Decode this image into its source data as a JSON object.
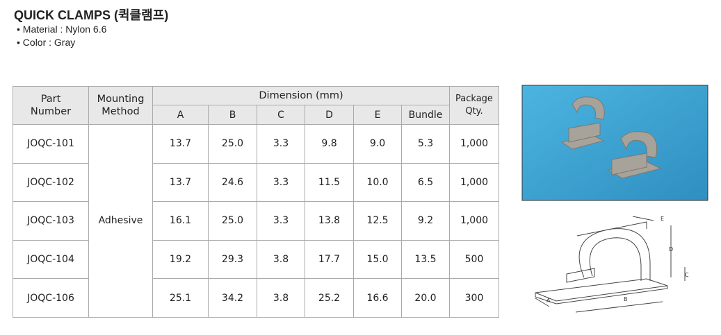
{
  "header": {
    "title": "QUICK CLAMPS (퀵클램프)",
    "bullets": [
      "• Material : Nylon 6.6",
      "• Color : Gray"
    ]
  },
  "table": {
    "part_header": [
      "Part",
      "Number"
    ],
    "mounting_header": [
      "Mounting",
      "Method"
    ],
    "dimension_header": "Dimension (mm)",
    "dimension_columns": [
      "A",
      "B",
      "C",
      "D",
      "E",
      "Bundle"
    ],
    "package_header": [
      "Package",
      "Qty."
    ],
    "mounting": "Adhesive",
    "rows": [
      [
        "JOQC-101",
        "13.7",
        "25.0",
        "3.3",
        "9.8",
        "9.0",
        "5.3",
        "1,000"
      ],
      [
        "JOQC-102",
        "13.7",
        "24.6",
        "3.3",
        "11.5",
        "10.0",
        "6.5",
        "1,000"
      ],
      [
        "JOQC-103",
        "16.1",
        "25.0",
        "3.3",
        "13.8",
        "12.5",
        "9.2",
        "1,000"
      ],
      [
        "JOQC-104",
        "19.2",
        "29.3",
        "3.8",
        "17.7",
        "15.0",
        "13.5",
        "500"
      ],
      [
        "JOQC-106",
        "25.1",
        "34.2",
        "3.8",
        "25.2",
        "16.6",
        "20.0",
        "300"
      ]
    ]
  },
  "diagram": {
    "labels": [
      "A",
      "B",
      "C",
      "D",
      "E"
    ]
  }
}
